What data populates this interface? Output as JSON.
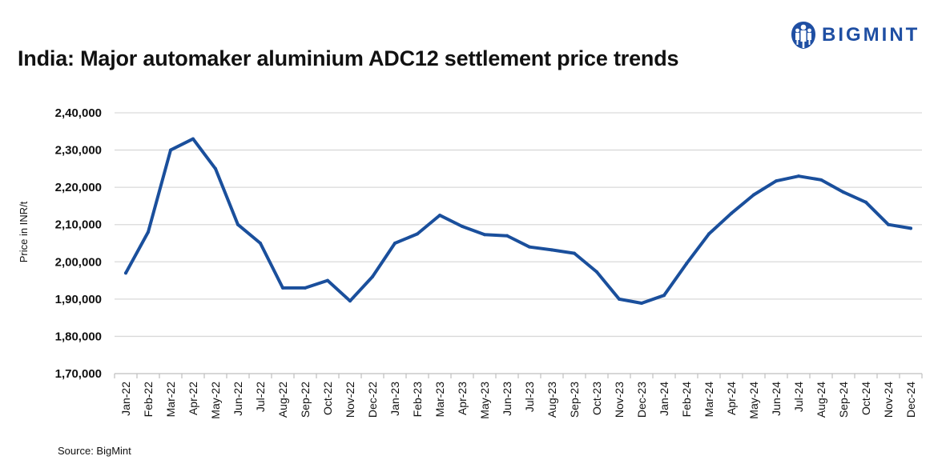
{
  "title": "India: Major automaker aluminium ADC12 settlement price trends",
  "brand": {
    "name": "BIGMINT",
    "color": "#1f4fa3",
    "icon": "people-logo-icon"
  },
  "source": "Source: BigMint",
  "chart_data": {
    "type": "line",
    "title": "India: Major automaker aluminium ADC12 settlement price trends",
    "xlabel": "",
    "ylabel": "Price in INR/t",
    "ylim": [
      170000,
      240000
    ],
    "y_ticks": [
      170000,
      180000,
      190000,
      200000,
      210000,
      220000,
      230000,
      240000
    ],
    "y_tick_labels": [
      "1,70,000",
      "1,80,000",
      "1,90,000",
      "2,00,000",
      "2,10,000",
      "2,20,000",
      "2,30,000",
      "2,40,000"
    ],
    "grid": true,
    "legend": "none",
    "line_color": "#1a4f9c",
    "categories": [
      "Jan-22",
      "Feb-22",
      "Mar-22",
      "Apr-22",
      "May-22",
      "Jun-22",
      "Jul-22",
      "Aug-22",
      "Sep-22",
      "Oct-22",
      "Nov-22",
      "Dec-22",
      "Jan-23",
      "Feb-23",
      "Mar-23",
      "Apr-23",
      "May-23",
      "Jun-23",
      "Jul-23",
      "Aug-23",
      "Sep-23",
      "Oct-23",
      "Nov-23",
      "Dec-23",
      "Jan-24",
      "Feb-24",
      "Mar-24",
      "Apr-24",
      "May-24",
      "Jun-24",
      "Jul-24",
      "Aug-24",
      "Sep-24",
      "Oct-24",
      "Nov-24",
      "Dec-24"
    ],
    "series": [
      {
        "values": [
          197000,
          208000,
          230000,
          233000,
          225000,
          210000,
          205000,
          193000,
          193000,
          195000,
          189500,
          196000,
          205000,
          207500,
          212500,
          209500,
          207300,
          207000,
          204000,
          203200,
          202300,
          197300,
          190000,
          188900,
          191000,
          199500,
          207500,
          213000,
          218000,
          221700,
          223000,
          222000,
          218700,
          216000,
          210000,
          209000
        ]
      }
    ]
  }
}
